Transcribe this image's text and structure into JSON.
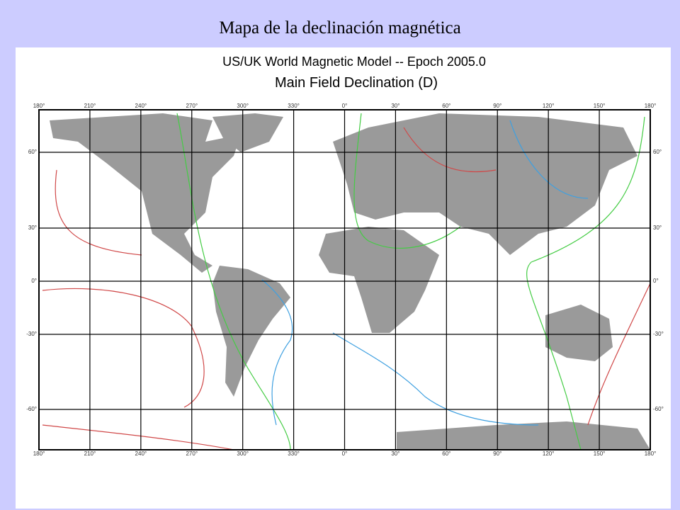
{
  "header": {
    "title": "Mapa de la declinación magnética"
  },
  "map": {
    "title": "US/UK World Magnetic Model  --  Epoch 2005.0",
    "subtitle": "Main Field Declination (D)",
    "longitude_labels": [
      "180°",
      "210°",
      "240°",
      "270°",
      "300°",
      "330°",
      "0°",
      "30°",
      "60°",
      "90°",
      "120°",
      "150°",
      "180°"
    ],
    "latitude_labels": [
      "60°",
      "30°",
      "0°",
      "-30°",
      "-60°"
    ]
  }
}
